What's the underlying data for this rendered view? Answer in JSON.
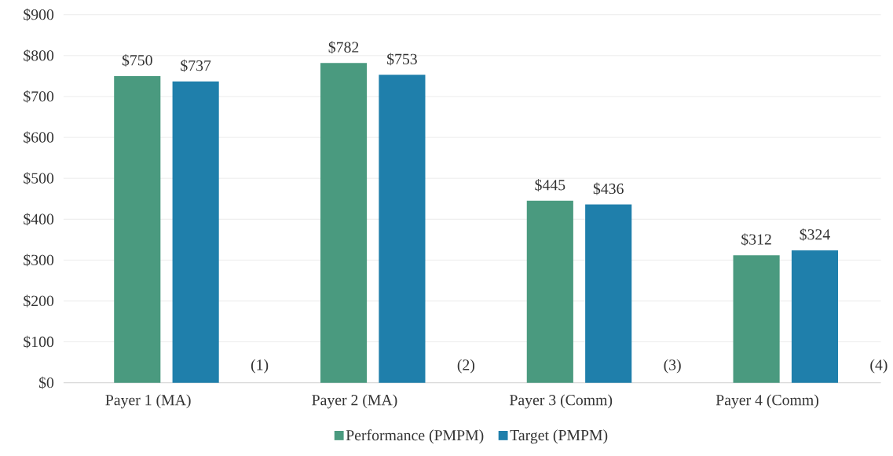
{
  "chart_data": {
    "type": "bar",
    "categories": [
      "Payer 1 (MA)",
      "Payer 2 (MA)",
      "Payer 3 (Comm)",
      "Payer 4 (Comm)"
    ],
    "series": [
      {
        "name": "Performance (PMPM)",
        "color": "#4a9a7f",
        "values": [
          750,
          782,
          445,
          312
        ],
        "value_labels": [
          "$750",
          "$782",
          "$445",
          "$312"
        ]
      },
      {
        "name": "Target (PMPM)",
        "color": "#1f7fab",
        "values": [
          737,
          753,
          436,
          324
        ],
        "value_labels": [
          "$737",
          "$753",
          "$436",
          "$324"
        ]
      }
    ],
    "ylim": [
      0,
      900
    ],
    "yticks": [
      {
        "value": 0,
        "label": "$0"
      },
      {
        "value": 100,
        "label": "$100"
      },
      {
        "value": 200,
        "label": "$200"
      },
      {
        "value": 300,
        "label": "$300"
      },
      {
        "value": 400,
        "label": "$400"
      },
      {
        "value": 500,
        "label": "$500"
      },
      {
        "value": 600,
        "label": "$600"
      },
      {
        "value": 700,
        "label": "$700"
      },
      {
        "value": 800,
        "label": "$800"
      },
      {
        "value": 900,
        "label": "$900"
      }
    ],
    "grid": "y",
    "legend": "bottom",
    "annotations": [
      "(1)",
      "(2)",
      "(3)",
      "(4)"
    ]
  }
}
